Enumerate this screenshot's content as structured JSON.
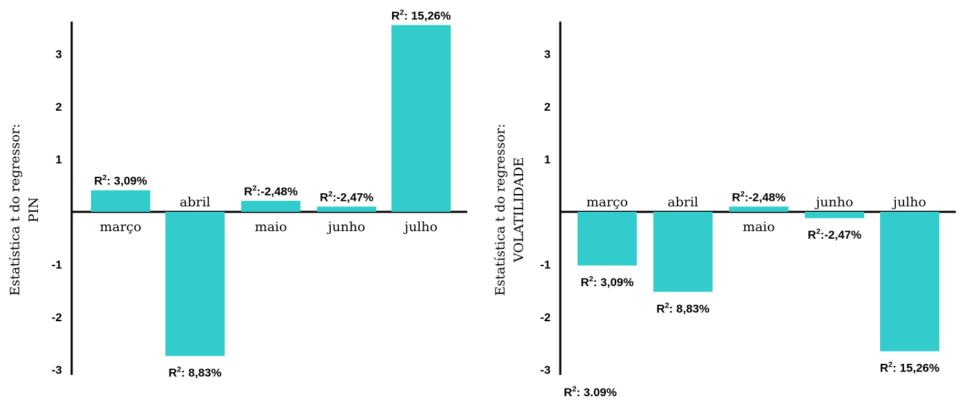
{
  "chart_data": [
    {
      "type": "bar",
      "ylabel_lines": [
        "Estatística t  do regressor:",
        "PIN"
      ],
      "yticks": [
        -3,
        -2,
        -1,
        1,
        2,
        3
      ],
      "ylim": [
        -3.1,
        3.55
      ],
      "color": "#33cccc",
      "categories": [
        "março",
        "abril",
        "maio",
        "junho",
        "julho"
      ],
      "values": [
        0.41,
        -2.74,
        0.21,
        0.1,
        3.55
      ],
      "r2_labels": [
        "R²: 3,09%",
        "R²: 8,83%",
        "R²:-2,48%",
        "R²:-2,47%",
        "R²: 15,26%"
      ]
    },
    {
      "type": "bar",
      "ylabel_lines": [
        "Estatística t  do regressor:",
        "VOLATILIDADE"
      ],
      "yticks": [
        -3,
        -2,
        -1,
        1,
        2,
        3
      ],
      "ylim": [
        -3.1,
        3.55
      ],
      "color": "#33cccc",
      "categories": [
        "março",
        "abril",
        "maio",
        "junho",
        "julho"
      ],
      "values": [
        -1.02,
        -1.52,
        0.1,
        -0.12,
        -2.65
      ],
      "r2_labels": [
        "R²: 3,09%",
        "R²: 8,83%",
        "R²:-2,48%",
        "R²:-2,47%",
        "R²: 15,26%"
      ]
    }
  ],
  "footnote": "R²: 3.09%"
}
